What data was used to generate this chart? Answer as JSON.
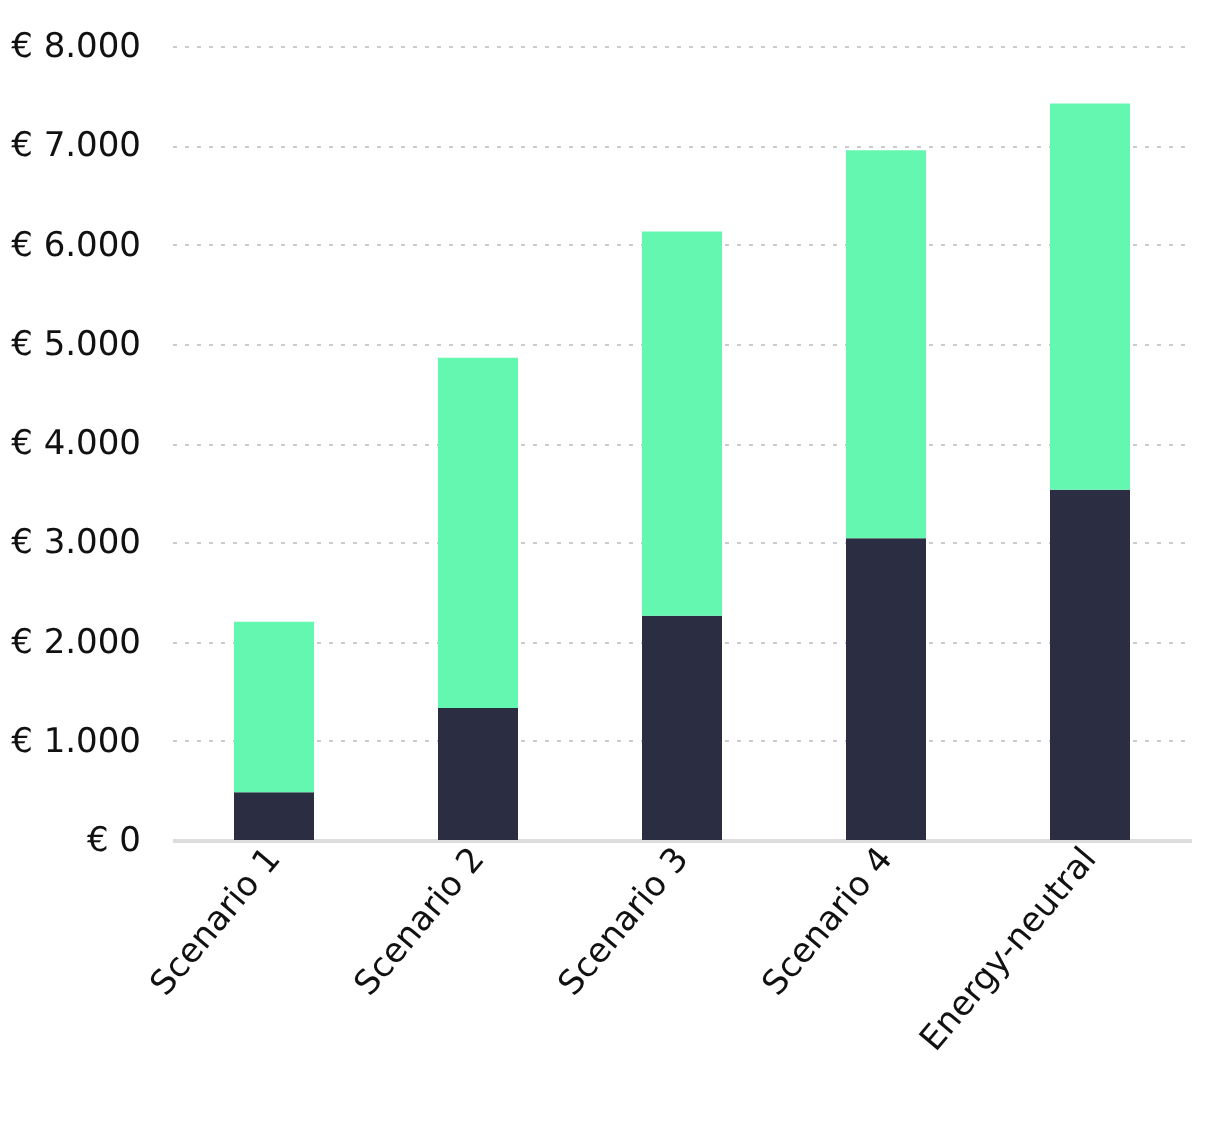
{
  "chart_data": {
    "type": "bar",
    "stacked": true,
    "categories": [
      "Scenario 1",
      "Scenario 2",
      "Scenario 3",
      "Scenario 4",
      "Energy-neutral"
    ],
    "series": [
      {
        "color": "#2b2e42",
        "values": [
          480,
          1330,
          2260,
          3040,
          3530
        ]
      },
      {
        "color": "#64f7b0",
        "values": [
          1720,
          3530,
          3870,
          3910,
          3890
        ]
      }
    ],
    "ylim": [
      0,
      8000
    ],
    "yticks": [
      {
        "value": 0,
        "label": "€ 0"
      },
      {
        "value": 1000,
        "label": "€ 1.000"
      },
      {
        "value": 2000,
        "label": "€ 2.000"
      },
      {
        "value": 3000,
        "label": "€ 3.000"
      },
      {
        "value": 4000,
        "label": "€ 4.000"
      },
      {
        "value": 5000,
        "label": "€ 5.000"
      },
      {
        "value": 6000,
        "label": "€ 6.000"
      },
      {
        "value": 7000,
        "label": "€ 7.000"
      },
      {
        "value": 8000,
        "label": "€ 8.000"
      }
    ],
    "grid": "y",
    "legend": false
  }
}
